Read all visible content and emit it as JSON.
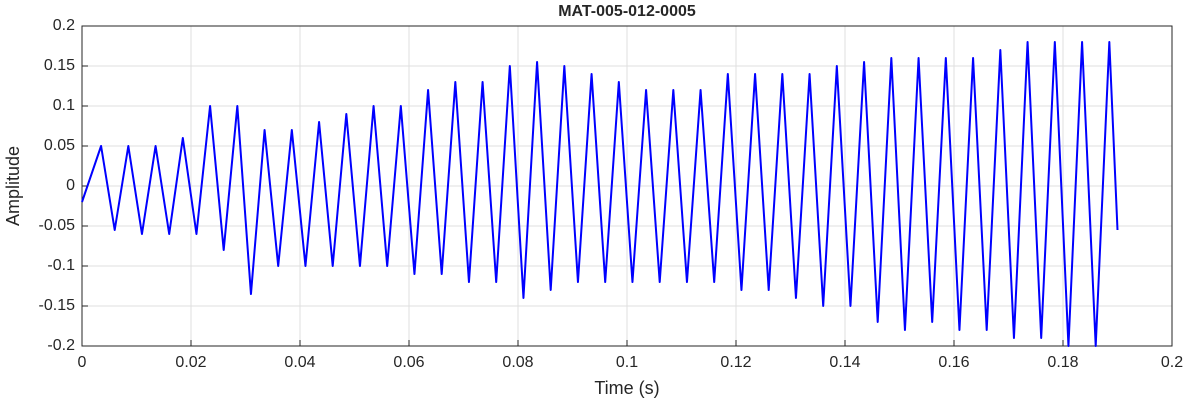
{
  "chart_data": {
    "type": "line",
    "title": "MAT-005-012-0005",
    "x_label": "Time (s)",
    "y_label": "Amplitude",
    "x": [
      0,
      0.0035,
      0.006,
      0.0085,
      0.011,
      0.0135,
      0.016,
      0.0185,
      0.021,
      0.0235,
      0.026,
      0.0285,
      0.031,
      0.0335,
      0.036,
      0.0385,
      0.041,
      0.0435,
      0.046,
      0.0485,
      0.051,
      0.0535,
      0.056,
      0.0585,
      0.061,
      0.0635,
      0.066,
      0.0685,
      0.071,
      0.0735,
      0.076,
      0.0785,
      0.081,
      0.0835,
      0.086,
      0.0885,
      0.091,
      0.0935,
      0.096,
      0.0985,
      0.101,
      0.1035,
      0.106,
      0.1085,
      0.111,
      0.1135,
      0.116,
      0.1185,
      0.121,
      0.1235,
      0.126,
      0.1285,
      0.131,
      0.1335,
      0.136,
      0.1385,
      0.141,
      0.1435,
      0.146,
      0.1485,
      0.151,
      0.1535,
      0.156,
      0.1585,
      0.161,
      0.1635,
      0.166,
      0.1685,
      0.171,
      0.1735,
      0.176,
      0.1785,
      0.181,
      0.1835,
      0.186,
      0.1885,
      0.19
    ],
    "series": [
      {
        "color": "#0000ff",
        "values": [
          -0.02,
          0.05,
          -0.055,
          0.05,
          -0.06,
          0.05,
          -0.06,
          0.06,
          -0.06,
          0.1,
          -0.08,
          0.1,
          -0.135,
          0.07,
          -0.1,
          0.07,
          -0.1,
          0.08,
          -0.1,
          0.09,
          -0.1,
          0.1,
          -0.1,
          0.1,
          -0.11,
          0.12,
          -0.11,
          0.13,
          -0.12,
          0.13,
          -0.12,
          0.15,
          -0.14,
          0.155,
          -0.13,
          0.15,
          -0.12,
          0.14,
          -0.12,
          0.13,
          -0.12,
          0.12,
          -0.12,
          0.12,
          -0.12,
          0.12,
          -0.12,
          0.14,
          -0.13,
          0.14,
          -0.13,
          0.14,
          -0.14,
          0.14,
          -0.15,
          0.15,
          -0.15,
          0.155,
          -0.17,
          0.16,
          -0.18,
          0.16,
          -0.17,
          0.16,
          -0.18,
          0.16,
          -0.18,
          0.17,
          -0.19,
          0.18,
          -0.19,
          0.18,
          -0.2,
          0.18,
          -0.2,
          0.18,
          -0.055
        ]
      }
    ],
    "xlim": [
      0,
      0.2
    ],
    "xticks": [
      0,
      0.02,
      0.04,
      0.06,
      0.08,
      0.1,
      0.12,
      0.14,
      0.16,
      0.18,
      0.2
    ],
    "ylim": [
      -0.2,
      0.2
    ],
    "yticks": [
      -0.2,
      -0.15,
      -0.1,
      -0.05,
      0,
      0.05,
      0.1,
      0.15,
      0.2
    ],
    "grid": true
  }
}
